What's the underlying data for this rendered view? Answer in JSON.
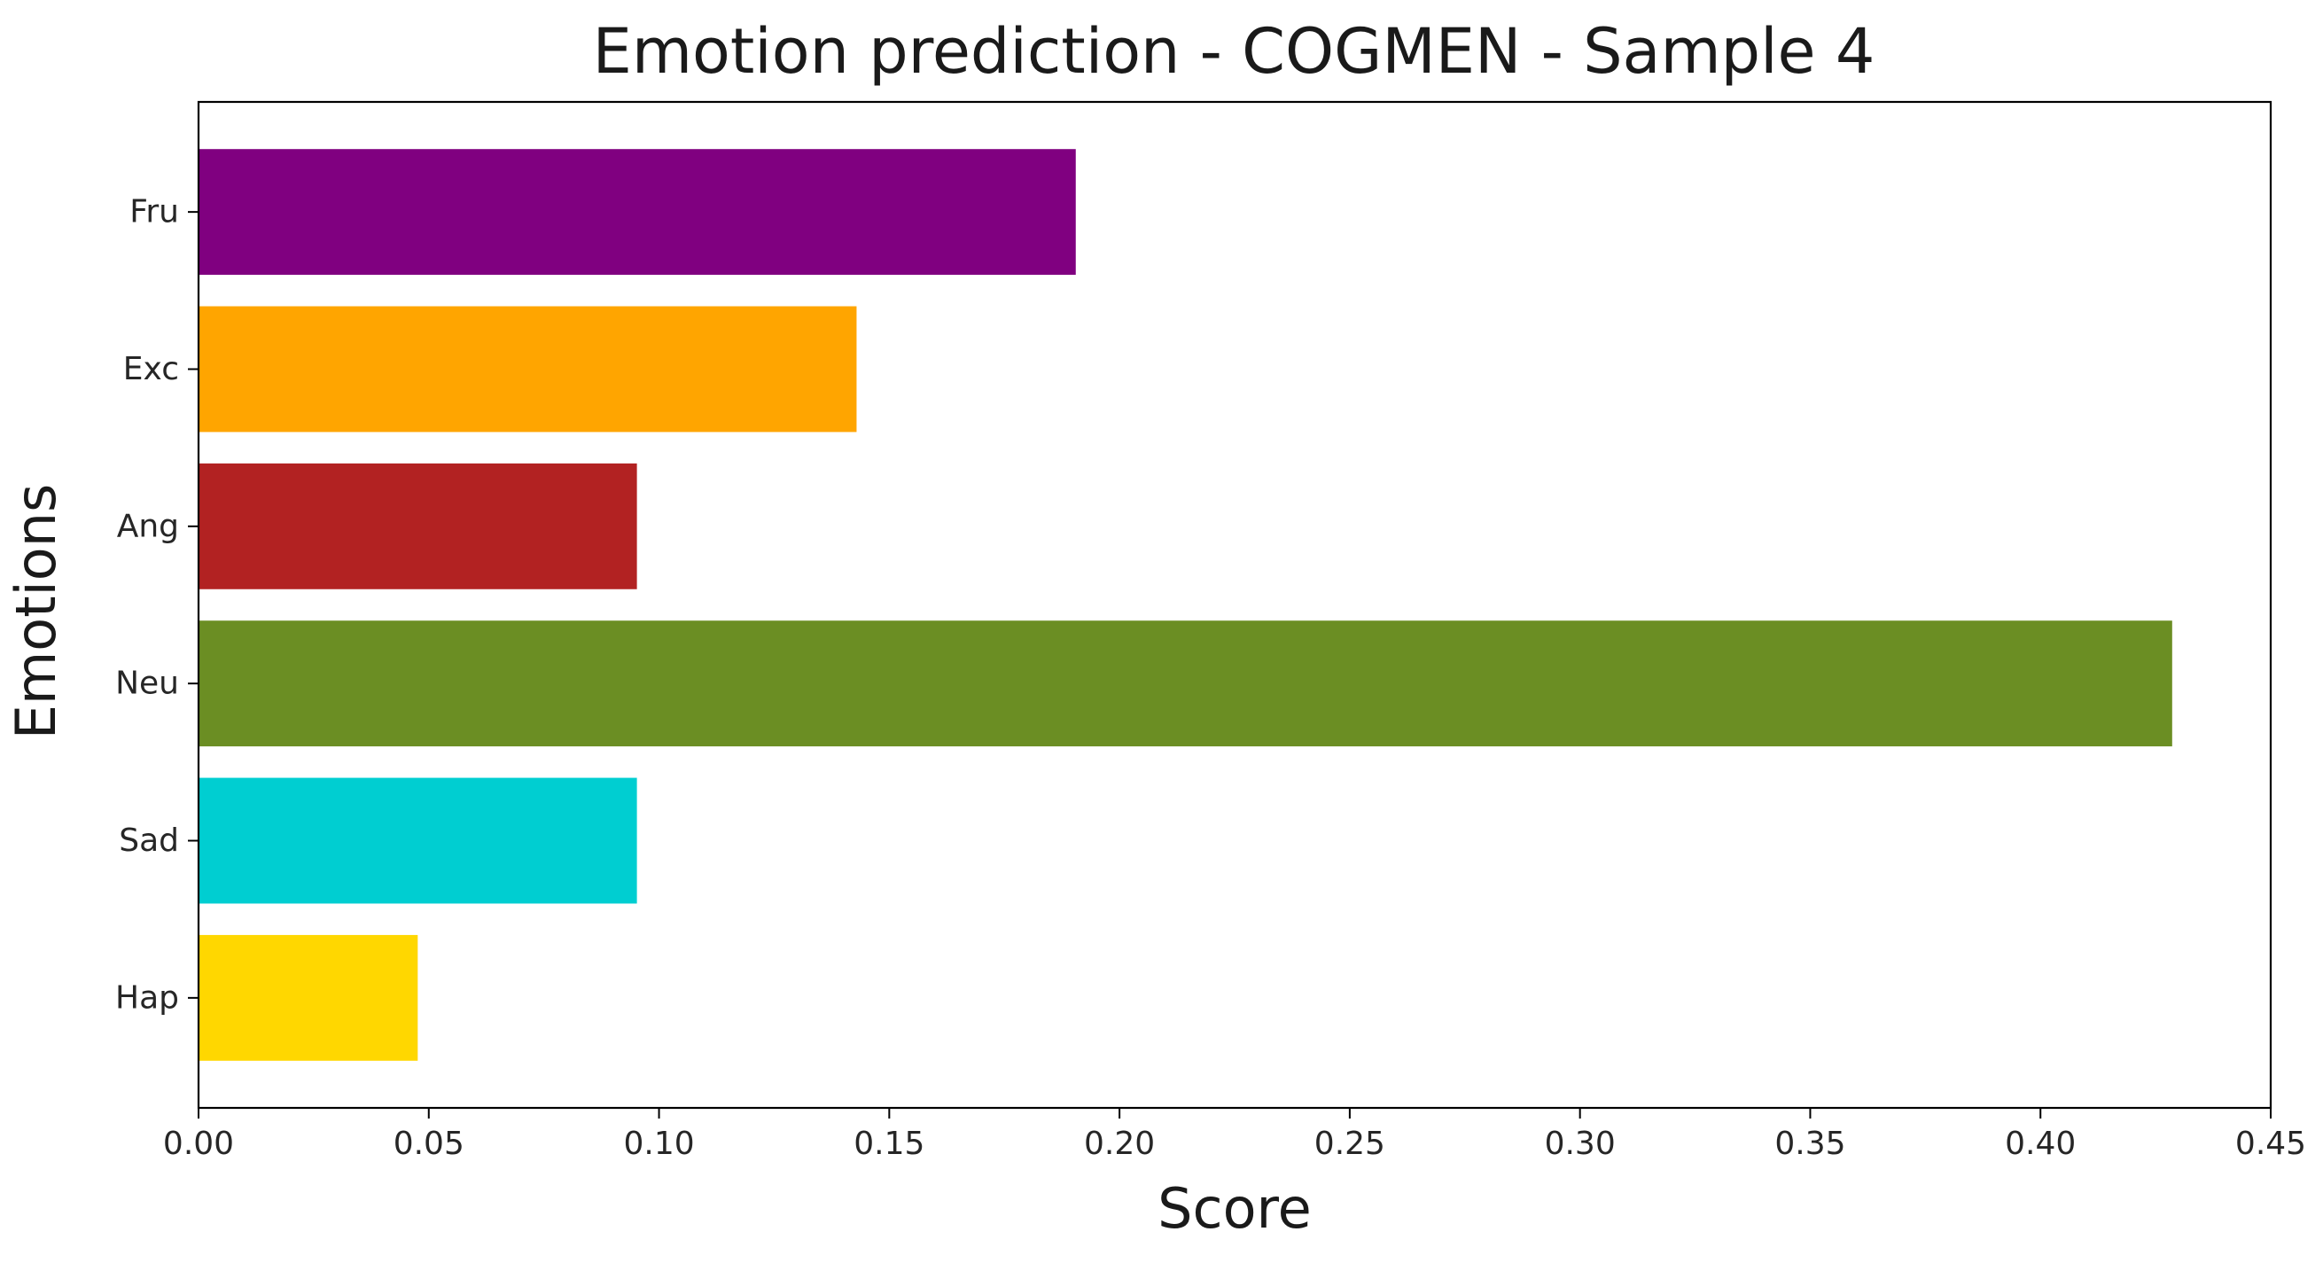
{
  "chart_data": {
    "type": "bar",
    "orientation": "horizontal",
    "title": "Emotion prediction - COGMEN - Sample 4",
    "xlabel": "Score",
    "ylabel": "Emotions",
    "categories": [
      "Hap",
      "Sad",
      "Neu",
      "Ang",
      "Exc",
      "Fru"
    ],
    "values": [
      0.0476,
      0.0952,
      0.4286,
      0.0952,
      0.1429,
      0.1905
    ],
    "colors": [
      "#ffd700",
      "#00ced1",
      "#6b8e23",
      "#b22222",
      "#ffa500",
      "#800080"
    ],
    "xlim": [
      0,
      0.45
    ],
    "xticks": [
      0.0,
      0.05,
      0.1,
      0.15,
      0.2,
      0.25,
      0.3,
      0.35,
      0.4,
      0.45
    ],
    "xtick_labels": [
      "0.00",
      "0.05",
      "0.10",
      "0.15",
      "0.20",
      "0.25",
      "0.30",
      "0.35",
      "0.40",
      "0.45"
    ],
    "grid": false,
    "legend": "none"
  }
}
